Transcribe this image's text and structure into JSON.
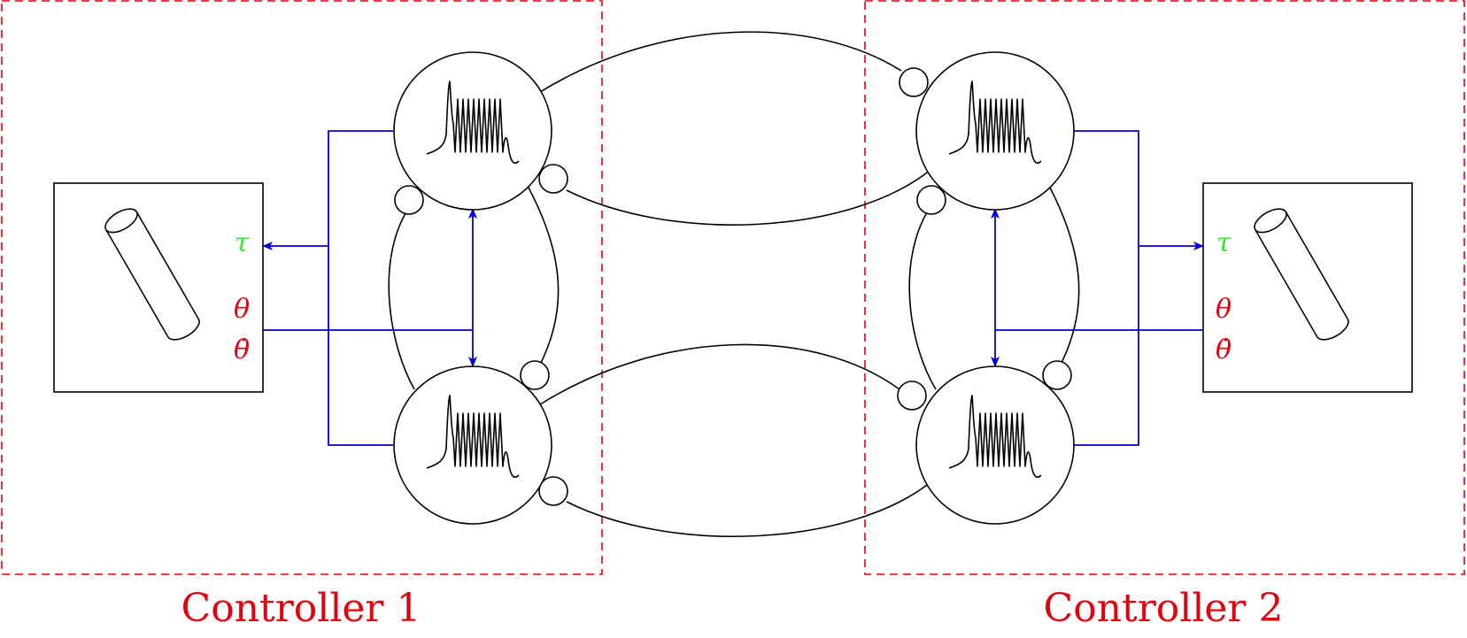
{
  "controllers": [
    {
      "label": "Controller 1"
    },
    {
      "label": "Controller 2"
    }
  ],
  "symbols": {
    "torque": "τ",
    "angle": "θ",
    "angular_velocity": "θ̇"
  },
  "colors": {
    "controller_border": "#e3000f",
    "signal_lines": "#0000d6",
    "torque_symbol": "#33e62e",
    "state_symbols": "#e3000f",
    "neuron_outline": "#000000"
  },
  "icons": {
    "neuron_trace": "spike-burst-icon",
    "plant": "pendulum-cylinder-icon",
    "synapse": "inhibitory-synapse-icon"
  }
}
